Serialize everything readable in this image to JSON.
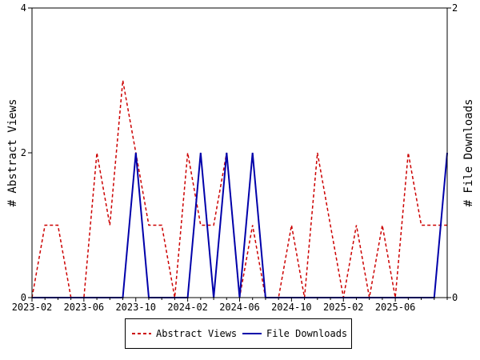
{
  "chart_data": {
    "type": "line",
    "x": [
      "2023-02",
      "2023-03",
      "2023-04",
      "2023-05",
      "2023-06",
      "2023-07",
      "2023-08",
      "2023-09",
      "2023-10",
      "2023-11",
      "2023-12",
      "2024-01",
      "2024-02",
      "2024-03",
      "2024-04",
      "2024-05",
      "2024-06",
      "2024-07",
      "2024-08",
      "2024-09",
      "2024-10",
      "2024-11",
      "2024-12",
      "2025-01",
      "2025-02",
      "2025-03",
      "2025-04",
      "2025-05",
      "2025-06",
      "2025-07",
      "2025-08",
      "2025-09",
      "2025-10"
    ],
    "x_tick_labels": [
      "2023-02",
      "2023-06",
      "2023-10",
      "2024-02",
      "2024-06",
      "2024-10",
      "2025-02",
      "2025-06"
    ],
    "series": [
      {
        "name": "Abstract Views",
        "axis": "left",
        "color": "#cc0000",
        "style": "dashed",
        "values": [
          0,
          1,
          1,
          0,
          0,
          2,
          1,
          3,
          2,
          1,
          1,
          0,
          2,
          1,
          1,
          2,
          0,
          1,
          0,
          0,
          1,
          0,
          2,
          1,
          0,
          1,
          0,
          1,
          0,
          2,
          1,
          1,
          1
        ]
      },
      {
        "name": "File Downloads",
        "axis": "right",
        "color": "#0000aa",
        "style": "solid",
        "values": [
          0,
          0,
          0,
          0,
          0,
          0,
          0,
          0,
          1,
          0,
          0,
          0,
          0,
          1,
          0,
          1,
          0,
          1,
          0,
          0,
          0,
          0,
          0,
          0,
          0,
          0,
          0,
          0,
          0,
          0,
          0,
          0,
          1
        ]
      }
    ],
    "ylabel_left": "# Abstract Views",
    "ylabel_right": "# File Downloads",
    "ylim_left": [
      0,
      4
    ],
    "ylim_right": [
      0,
      2
    ],
    "yticks_left": [
      0,
      2,
      4
    ],
    "yticks_right": [
      0,
      2
    ],
    "legend_position": "bottom-center",
    "grid": false
  }
}
